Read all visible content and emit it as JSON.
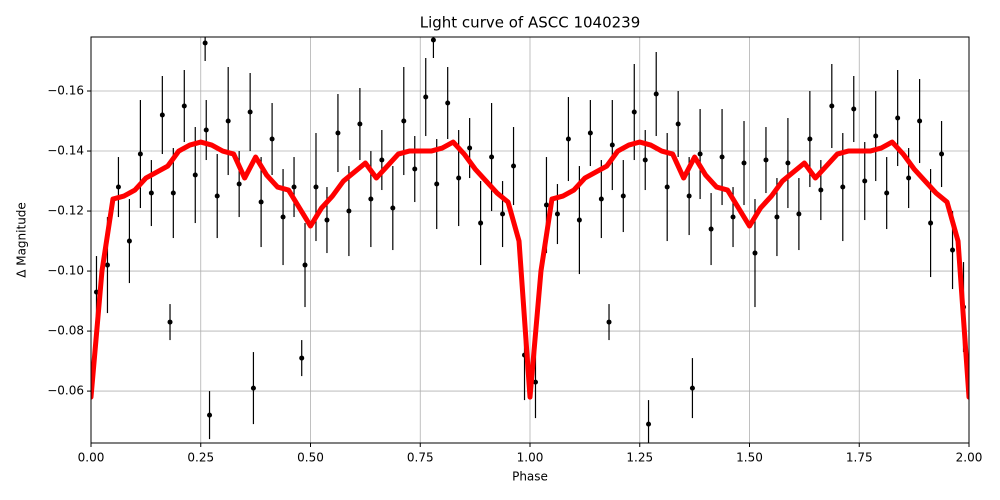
{
  "chart_data": {
    "type": "scatter",
    "title": "Light curve of ASCC 1040239",
    "xlabel": "Phase",
    "ylabel": "Δ Magnitude",
    "xlim": [
      0,
      2
    ],
    "ylim": [
      -0.0427,
      -0.178
    ],
    "xticks": [
      {
        "value": 0,
        "label": "0.00"
      },
      {
        "value": 0.25,
        "label": "0.25"
      },
      {
        "value": 0.5,
        "label": "0.50"
      },
      {
        "value": 0.75,
        "label": "0.75"
      },
      {
        "value": 1,
        "label": "1.00"
      },
      {
        "value": 1.25,
        "label": "1.25"
      },
      {
        "value": 1.5,
        "label": "1.50"
      },
      {
        "value": 1.75,
        "label": "1.75"
      },
      {
        "value": 2,
        "label": "2.00"
      }
    ],
    "yticks": [
      {
        "value": -0.06,
        "label": "−0.06"
      },
      {
        "value": -0.08,
        "label": "−0.08"
      },
      {
        "value": -0.1,
        "label": "−0.10"
      },
      {
        "value": -0.12,
        "label": "−0.12"
      },
      {
        "value": -0.14,
        "label": "−0.14"
      },
      {
        "value": -0.16,
        "label": "−0.16"
      }
    ],
    "grid": true,
    "series": [
      {
        "type": "errorbar",
        "color": "#000000",
        "x": [
          0.0125,
          0.0375,
          0.0625,
          0.0875,
          0.1125,
          0.1375,
          0.1625,
          0.1875,
          0.2125,
          0.2375,
          0.2625,
          0.2875,
          0.3125,
          0.3375,
          0.3625,
          0.3875,
          0.4125,
          0.4375,
          0.4625,
          0.4875,
          0.5125,
          0.5375,
          0.5625,
          0.5875,
          0.6125,
          0.6375,
          0.6625,
          0.6875,
          0.7125,
          0.7375,
          0.7625,
          0.7875,
          0.8125,
          0.8375,
          0.8625,
          0.8875,
          0.9125,
          0.9375,
          0.9625,
          0.9875,
          1.0125,
          1.0375,
          1.0625,
          1.0875,
          1.1125,
          1.1375,
          1.1625,
          1.1875,
          1.2125,
          1.2375,
          1.2625,
          1.2875,
          1.3125,
          1.3375,
          1.3625,
          1.3875,
          1.4125,
          1.4375,
          1.4625,
          1.4875,
          1.5125,
          1.5375,
          1.5625,
          1.5875,
          1.6125,
          1.6375,
          1.6625,
          1.6875,
          1.7125,
          1.7375,
          1.7625,
          1.7875,
          1.8125,
          1.8375,
          1.8625,
          1.8875,
          1.9125,
          1.9375,
          1.9625,
          1.9875,
          0.27,
          0.37,
          0.48,
          1.27,
          1.37,
          0.18,
          1.18,
          0.26,
          0.78
        ],
        "values": [
          -0.093,
          -0.102,
          -0.128,
          -0.11,
          -0.139,
          -0.126,
          -0.152,
          -0.126,
          -0.155,
          -0.132,
          -0.147,
          -0.125,
          -0.15,
          -0.129,
          -0.153,
          -0.123,
          -0.144,
          -0.118,
          -0.128,
          -0.102,
          -0.128,
          -0.117,
          -0.146,
          -0.12,
          -0.149,
          -0.124,
          -0.137,
          -0.121,
          -0.15,
          -0.134,
          -0.158,
          -0.129,
          -0.156,
          -0.131,
          -0.141,
          -0.116,
          -0.138,
          -0.119,
          -0.135,
          -0.072,
          -0.063,
          -0.122,
          -0.119,
          -0.144,
          -0.117,
          -0.146,
          -0.124,
          -0.142,
          -0.125,
          -0.153,
          -0.137,
          -0.159,
          -0.128,
          -0.149,
          -0.125,
          -0.139,
          -0.114,
          -0.138,
          -0.118,
          -0.136,
          -0.106,
          -0.137,
          -0.118,
          -0.136,
          -0.119,
          -0.144,
          -0.127,
          -0.155,
          -0.128,
          -0.154,
          -0.13,
          -0.145,
          -0.126,
          -0.151,
          -0.131,
          -0.15,
          -0.116,
          -0.139,
          -0.107,
          -0.088,
          -0.052,
          -0.061,
          -0.071,
          -0.049,
          -0.061,
          -0.083,
          -0.083,
          -0.176,
          -0.177
        ],
        "errors": [
          0.012,
          0.016,
          0.01,
          0.014,
          0.018,
          0.011,
          0.013,
          0.015,
          0.012,
          0.016,
          0.01,
          0.014,
          0.018,
          0.011,
          0.013,
          0.015,
          0.012,
          0.016,
          0.01,
          0.014,
          0.018,
          0.011,
          0.013,
          0.015,
          0.012,
          0.016,
          0.01,
          0.014,
          0.018,
          0.011,
          0.013,
          0.015,
          0.012,
          0.016,
          0.01,
          0.014,
          0.018,
          0.011,
          0.013,
          0.015,
          0.012,
          0.016,
          0.01,
          0.014,
          0.018,
          0.011,
          0.013,
          0.015,
          0.012,
          0.016,
          0.01,
          0.014,
          0.018,
          0.011,
          0.013,
          0.015,
          0.012,
          0.016,
          0.01,
          0.014,
          0.018,
          0.011,
          0.013,
          0.015,
          0.012,
          0.016,
          0.01,
          0.014,
          0.018,
          0.011,
          0.013,
          0.015,
          0.012,
          0.016,
          0.01,
          0.014,
          0.018,
          0.011,
          0.013,
          0.015,
          0.008,
          0.012,
          0.006,
          0.008,
          0.01,
          0.006,
          0.006,
          0.006,
          0.006
        ]
      },
      {
        "type": "line",
        "color": "#ff0000",
        "x": [
          0,
          0.025,
          0.05,
          0.075,
          0.1,
          0.125,
          0.15,
          0.175,
          0.2,
          0.225,
          0.25,
          0.275,
          0.3,
          0.325,
          0.35,
          0.375,
          0.4,
          0.425,
          0.45,
          0.475,
          0.5,
          0.525,
          0.55,
          0.575,
          0.6,
          0.625,
          0.65,
          0.675,
          0.7,
          0.725,
          0.75,
          0.775,
          0.8,
          0.825,
          0.85,
          0.875,
          0.9,
          0.925,
          0.95,
          0.975,
          1,
          1.025,
          1.05,
          1.075,
          1.1,
          1.125,
          1.15,
          1.175,
          1.2,
          1.225,
          1.25,
          1.275,
          1.3,
          1.325,
          1.35,
          1.375,
          1.4,
          1.425,
          1.45,
          1.475,
          1.5,
          1.525,
          1.55,
          1.575,
          1.6,
          1.625,
          1.65,
          1.675,
          1.7,
          1.725,
          1.75,
          1.775,
          1.8,
          1.825,
          1.85,
          1.875,
          1.9,
          1.925,
          1.95,
          1.975,
          2
        ],
        "values": [
          -0.058,
          -0.1,
          -0.124,
          -0.125,
          -0.127,
          -0.131,
          -0.133,
          -0.135,
          -0.14,
          -0.142,
          -0.143,
          -0.142,
          -0.14,
          -0.139,
          -0.131,
          -0.138,
          -0.132,
          -0.128,
          -0.127,
          -0.121,
          -0.115,
          -0.121,
          -0.125,
          -0.13,
          -0.133,
          -0.136,
          -0.131,
          -0.135,
          -0.139,
          -0.14,
          -0.14,
          -0.14,
          -0.141,
          -0.143,
          -0.139,
          -0.134,
          -0.13,
          -0.126,
          -0.123,
          -0.11,
          -0.058,
          -0.1,
          -0.124,
          -0.125,
          -0.127,
          -0.131,
          -0.133,
          -0.135,
          -0.14,
          -0.142,
          -0.143,
          -0.142,
          -0.14,
          -0.139,
          -0.131,
          -0.138,
          -0.132,
          -0.128,
          -0.127,
          -0.121,
          -0.115,
          -0.121,
          -0.125,
          -0.13,
          -0.133,
          -0.136,
          -0.131,
          -0.135,
          -0.139,
          -0.14,
          -0.14,
          -0.14,
          -0.141,
          -0.143,
          -0.139,
          -0.134,
          -0.13,
          -0.126,
          -0.123,
          -0.11,
          -0.058
        ]
      }
    ]
  }
}
